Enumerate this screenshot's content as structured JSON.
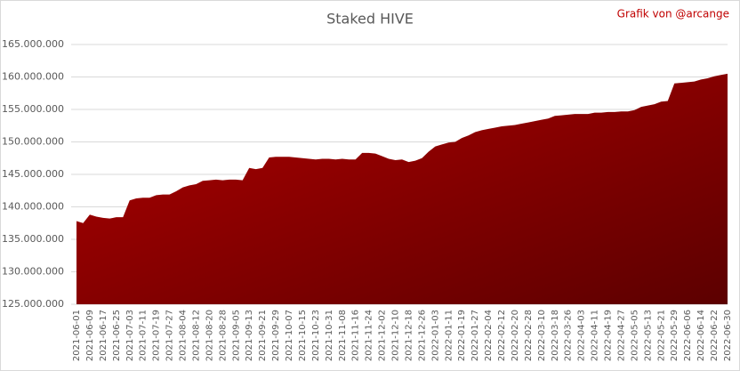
{
  "chart_data": {
    "type": "area",
    "title": "Staked HIVE",
    "annotation": "Grafik von @arcange",
    "categories": [
      "2021-06-01",
      null,
      "2021-06-09",
      null,
      "2021-06-17",
      null,
      "2021-06-25",
      null,
      "2021-07-03",
      null,
      "2021-07-11",
      null,
      "2021-07-19",
      null,
      "2021-07-27",
      null,
      "2021-08-04",
      null,
      "2021-08-12",
      null,
      "2021-08-20",
      null,
      "2021-08-28",
      null,
      "2021-09-05",
      null,
      "2021-09-13",
      null,
      "2021-09-21",
      null,
      "2021-09-29",
      null,
      "2021-10-07",
      null,
      "2021-10-15",
      null,
      "2021-10-23",
      null,
      "2021-10-31",
      null,
      "2021-11-08",
      null,
      "2021-11-16",
      null,
      "2021-11-24",
      null,
      "2021-12-02",
      null,
      "2021-12-10",
      null,
      "2021-12-18",
      null,
      "2021-12-26",
      null,
      "2022-01-03",
      null,
      "2022-01-11",
      null,
      "2022-01-19",
      null,
      "2022-01-27",
      null,
      "2022-02-04",
      null,
      "2022-02-12",
      null,
      "2022-02-20",
      null,
      "2022-02-28",
      null,
      "2022-03-10",
      null,
      "2022-03-18",
      null,
      "2022-03-26",
      null,
      "2022-04-03",
      null,
      "2022-04-11",
      null,
      "2022-04-19",
      null,
      "2022-04-27",
      null,
      "2022-05-05",
      null,
      "2022-05-13",
      null,
      "2022-05-21",
      null,
      "2022-05-29",
      null,
      "2022-06-06",
      null,
      "2022-06-14",
      null,
      "2022-06-22",
      null,
      "2022-06-30"
    ],
    "series": [
      {
        "name": "Staked HIVE",
        "color": "#b00000",
        "values": [
          137800000,
          137500000,
          138800000,
          138500000,
          138300000,
          138200000,
          138400000,
          138400000,
          141000000,
          141300000,
          141400000,
          141400000,
          141800000,
          141900000,
          141900000,
          142400000,
          143000000,
          143300000,
          143500000,
          144000000,
          144100000,
          144200000,
          144100000,
          144200000,
          144200000,
          144100000,
          146000000,
          145800000,
          146000000,
          147600000,
          147700000,
          147700000,
          147700000,
          147600000,
          147500000,
          147400000,
          147300000,
          147400000,
          147400000,
          147300000,
          147400000,
          147300000,
          147300000,
          148300000,
          148300000,
          148200000,
          147800000,
          147400000,
          147200000,
          147300000,
          146900000,
          147100000,
          147500000,
          148500000,
          149300000,
          149600000,
          149900000,
          150000000,
          150600000,
          151000000,
          151500000,
          151800000,
          152000000,
          152200000,
          152400000,
          152500000,
          152600000,
          152800000,
          153000000,
          153200000,
          153400000,
          153600000,
          154000000,
          154100000,
          154200000,
          154300000,
          154300000,
          154300000,
          154500000,
          154500000,
          154600000,
          154600000,
          154700000,
          154700000,
          154900000,
          155400000,
          155600000,
          155800000,
          156200000,
          156300000,
          159000000,
          159100000,
          159200000,
          159300000,
          159600000,
          159800000,
          160100000,
          160300000,
          160500000
        ]
      }
    ],
    "ylim": [
      125000000,
      165000000
    ],
    "yticks": [
      {
        "value": 125000000,
        "label": "125.000.000"
      },
      {
        "value": 130000000,
        "label": "130.000.000"
      },
      {
        "value": 135000000,
        "label": "135.000.000"
      },
      {
        "value": 140000000,
        "label": "140.000.000"
      },
      {
        "value": 145000000,
        "label": "145.000.000"
      },
      {
        "value": 150000000,
        "label": "150.000.000"
      },
      {
        "value": 155000000,
        "label": "155.000.000"
      },
      {
        "value": 160000000,
        "label": "160.000.000"
      },
      {
        "value": 165000000,
        "label": "165.000.000"
      }
    ],
    "grid": true
  }
}
